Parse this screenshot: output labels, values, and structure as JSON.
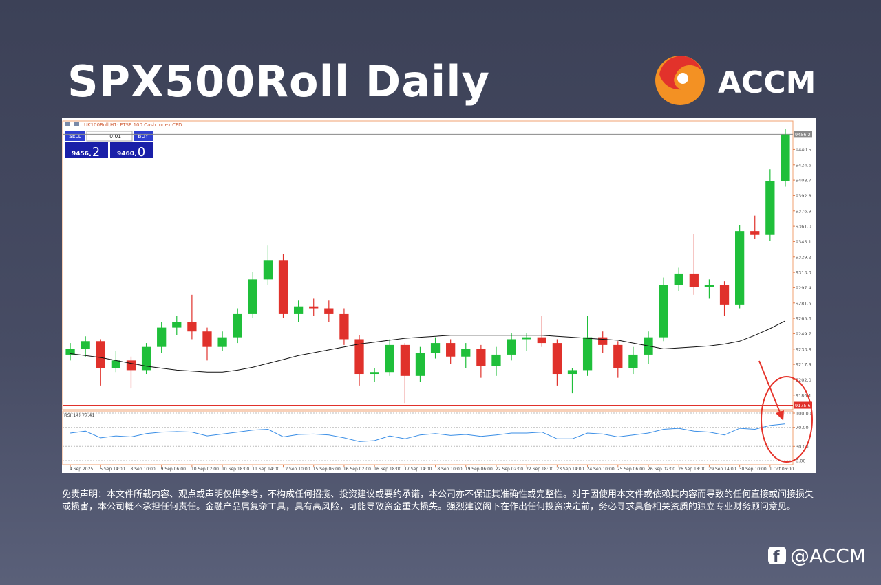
{
  "slide": {
    "title": "SPX500Roll Daily",
    "brand": "ACCM",
    "disclaimer": "免责声明：本文件所载内容、观点或声明仅供参考，不构成任何招揽、投资建议或要约承诺，本公司亦不保证其准确性或完整性。对于因使用本文件或依赖其内容而导致的任何直接或间接损失或损害，本公司概不承担任何责任。金融产品属复杂工具，具有高风险，可能导致资金重大损失。强烈建议阁下在作出任何投资决定前，务必寻求具备相关资质的独立专业财务顾问意见。",
    "handle": "@ACCM"
  },
  "trade_panel": {
    "sell_label": "SELL",
    "buy_label": "BUY",
    "lot": "0.01",
    "sell_main": "9456",
    "sell_frac": ".2",
    "buy_main": "9460",
    "buy_frac": ".0"
  },
  "chart_data": [
    {
      "type": "candlestick",
      "title": "UK100Roll,H1: FTSE 100 Cash Index CFD",
      "categories": [
        "4 Sep 2025",
        null,
        "5 Sep 14:00",
        null,
        "8 Sep 10:00",
        null,
        "9 Sep 06:00",
        null,
        "10 Sep 02:00",
        null,
        "10 Sep 18:00",
        null,
        "11 Sep 14:00",
        null,
        "12 Sep 10:00",
        null,
        "15 Sep 06:00",
        null,
        "16 Sep 02:00",
        null,
        "16 Sep 18:00",
        null,
        "17 Sep 14:00",
        null,
        "18 Sep 10:00",
        null,
        "19 Sep 06:00",
        null,
        "22 Sep 02:00",
        null,
        "22 Sep 18:00",
        null,
        "23 Sep 14:00",
        null,
        "24 Sep 10:00",
        null,
        "25 Sep 06:00",
        null,
        "26 Sep 02:00",
        null,
        "26 Sep 18:00",
        null,
        "29 Sep 14:00",
        null,
        "30 Sep 10:00",
        null,
        "1 Oct 06:00",
        null
      ],
      "open": [
        9228,
        9234,
        9242,
        9214,
        9222,
        9212,
        9236,
        9256,
        9262,
        9252,
        9236,
        9246,
        9270,
        9306,
        9326,
        9270,
        9278,
        9276,
        9270,
        9244,
        9208,
        9210,
        9238,
        9206,
        9230,
        9240,
        9226,
        9234,
        9216,
        9228,
        9244,
        9246,
        9240,
        9208,
        9212,
        9246,
        9238,
        9214,
        9228,
        9246,
        9300,
        9312,
        9298,
        9300,
        9280,
        9356,
        9352,
        9408
      ],
      "high": [
        9240,
        9247,
        9244,
        9232,
        9226,
        9240,
        9262,
        9268,
        9290,
        9256,
        9252,
        9276,
        9314,
        9341,
        9332,
        9284,
        9286,
        9284,
        9276,
        9248,
        9214,
        9244,
        9240,
        9236,
        9246,
        9244,
        9240,
        9238,
        9236,
        9250,
        9250,
        9268,
        9244,
        9214,
        9268,
        9252,
        9242,
        9236,
        9252,
        9308,
        9318,
        9353,
        9306,
        9304,
        9362,
        9372,
        9420,
        9462
      ],
      "low": [
        9222,
        9226,
        9196,
        9210,
        9193,
        9208,
        9230,
        9248,
        9244,
        9222,
        9232,
        9240,
        9266,
        9300,
        9266,
        9262,
        9268,
        9262,
        9238,
        9196,
        9200,
        9206,
        9178,
        9200,
        9224,
        9218,
        9214,
        9204,
        9206,
        9222,
        9232,
        9236,
        9196,
        9188,
        9206,
        9230,
        9204,
        9208,
        9218,
        9242,
        9294,
        9290,
        9286,
        9268,
        9276,
        9348,
        9346,
        9402
      ],
      "close": [
        9234,
        9242,
        9214,
        9222,
        9212,
        9236,
        9256,
        9262,
        9252,
        9236,
        9246,
        9270,
        9306,
        9326,
        9270,
        9278,
        9276,
        9270,
        9244,
        9208,
        9210,
        9238,
        9206,
        9230,
        9240,
        9226,
        9234,
        9216,
        9228,
        9244,
        9246,
        9240,
        9208,
        9212,
        9246,
        9238,
        9214,
        9228,
        9246,
        9300,
        9312,
        9298,
        9300,
        9280,
        9356,
        9352,
        9408,
        9456
      ],
      "up_color": "#1fbf3a",
      "down_color": "#e0312b",
      "ma": {
        "color": "#111111",
        "values": [
          9229,
          9227,
          9225,
          9222,
          9219,
          9216,
          9214,
          9212,
          9211,
          9210,
          9210,
          9212,
          9215,
          9219,
          9223,
          9227,
          9230,
          9233,
          9236,
          9239,
          9241,
          9243,
          9245,
          9246,
          9247,
          9248,
          9248,
          9248,
          9248,
          9248,
          9248,
          9248,
          9247,
          9246,
          9245,
          9244,
          9243,
          9240,
          9237,
          9234,
          9235,
          9236,
          9237,
          9239,
          9242,
          9248,
          9255,
          9263
        ]
      },
      "price_lines": [
        {
          "value": 9456.2,
          "color": "#8a8a8a"
        },
        {
          "value": 9175.6,
          "color": "#e0312b"
        }
      ],
      "ylim": [
        9171,
        9470
      ],
      "yticks": [
        9440.5,
        9424.6,
        9408.7,
        9392.8,
        9376.9,
        {
          "value": 9361,
          "label": "9361.0"
        },
        9345.1,
        9329.2,
        9313.3,
        9297.4,
        9281.5,
        9265.6,
        9249.7,
        9233.8,
        9217.9,
        {
          "value": 9202,
          "label": "9202.0"
        },
        9186.1
      ]
    },
    {
      "type": "line",
      "label": "RSI(14) 77.41",
      "color": "#3a8ee6",
      "values": [
        58,
        62,
        48,
        52,
        50,
        57,
        60,
        61,
        60,
        52,
        56,
        60,
        64,
        66,
        50,
        55,
        56,
        54,
        48,
        40,
        42,
        52,
        46,
        54,
        57,
        53,
        55,
        51,
        54,
        58,
        58,
        60,
        46,
        46,
        58,
        56,
        50,
        54,
        58,
        66,
        68,
        62,
        60,
        54,
        68,
        66,
        74,
        77.41
      ],
      "ylim": [
        0,
        100
      ],
      "yticks": [
        {
          "value": 100,
          "label": "100.00"
        },
        {
          "value": 70,
          "label": "70.00"
        },
        {
          "value": 30,
          "label": "30.00"
        },
        {
          "value": 0,
          "label": "0.00"
        }
      ],
      "grid": true
    }
  ]
}
